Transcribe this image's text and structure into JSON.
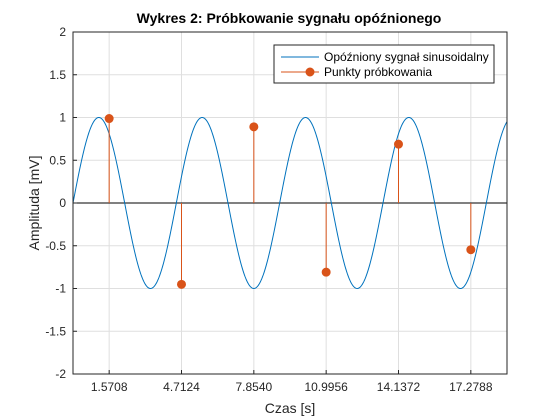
{
  "chart_data": {
    "type": "line",
    "title": "Wykres 2: Próbkowanie sygnału opóźnionego",
    "xlabel": "Czas [s]",
    "ylabel": "Amplituda [mV]",
    "xlim": [
      0,
      18.85
    ],
    "ylim": [
      -2,
      2
    ],
    "x_ticks": [
      1.5708,
      4.7124,
      7.854,
      10.9956,
      14.1372,
      17.2788
    ],
    "x_tick_labels": [
      "1.5708",
      "4.7124",
      "7.8540",
      "10.9956",
      "14.1372",
      "17.2788"
    ],
    "y_ticks": [
      -2,
      -1.5,
      -1,
      -0.5,
      0,
      0.5,
      1,
      1.5,
      2
    ],
    "y_tick_labels": [
      "-2",
      "-1.5",
      "-1",
      "-0.5",
      "0",
      "0.5",
      "1",
      "1.5",
      "2"
    ],
    "grid": true,
    "legend_position": "top-right",
    "series": [
      {
        "name": "Opóźniony sygnał sinusoidalny",
        "kind": "line",
        "color": "#0072BD",
        "amplitude": 1,
        "angular_frequency": 1.4,
        "phase": 0
      },
      {
        "name": "Punkty próbkowania",
        "kind": "stem",
        "color": "#D95319",
        "x": [
          1.5708,
          4.7124,
          7.854,
          10.9956,
          14.1372,
          17.2788
        ],
        "y": [
          0.9877,
          -0.9511,
          0.891,
          -0.809,
          0.6879,
          -0.5463
        ]
      }
    ]
  }
}
